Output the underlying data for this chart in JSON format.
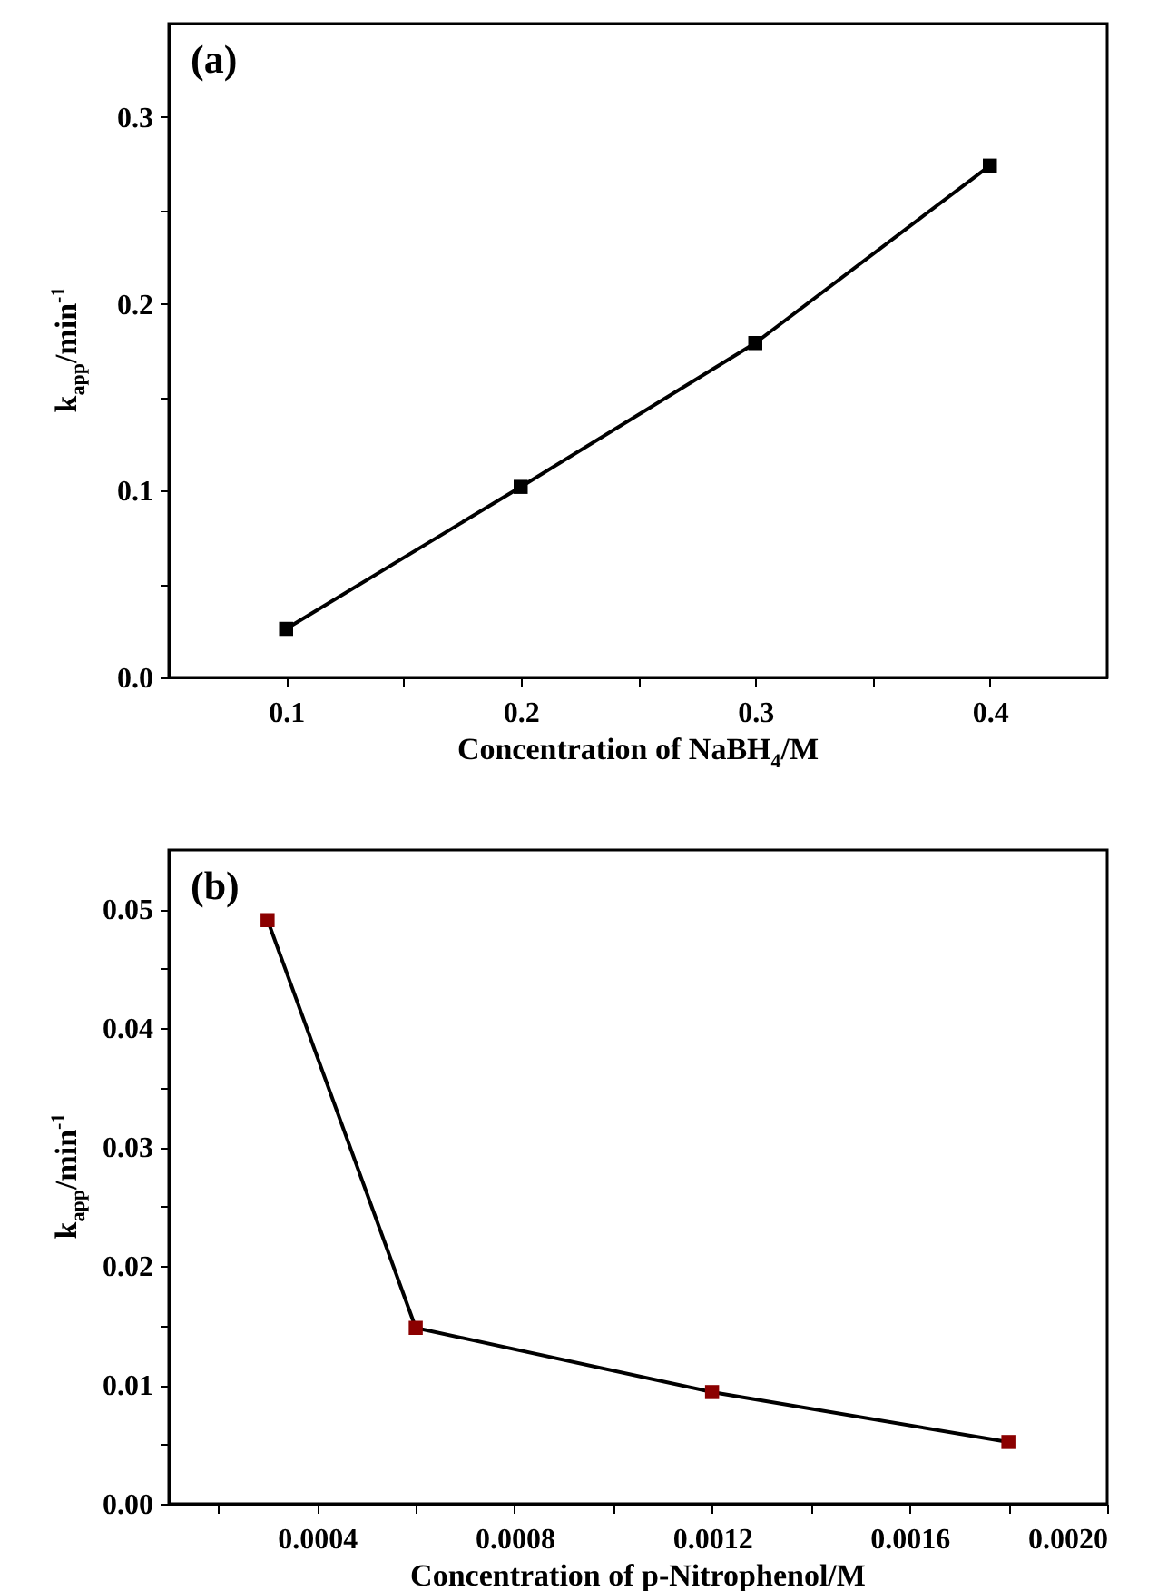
{
  "chart_data": [
    {
      "type": "line",
      "xlabel": "Concentration of NaBH$_{4}$/M",
      "ylabel": "k$_{app}$/min$^{-1}$",
      "annotations": [
        "(a)"
      ],
      "x": [
        0.1,
        0.2,
        0.3,
        0.4
      ],
      "series": [
        {
          "color": "#000000",
          "values": [
            0.026,
            0.102,
            0.179,
            0.274
          ]
        }
      ],
      "xlim": [
        0.05,
        0.45
      ],
      "xticks": [
        0.1,
        {
          "value": 0.15,
          "label": null
        },
        0.2,
        {
          "value": 0.25,
          "label": null
        },
        0.3,
        {
          "value": 0.35,
          "label": null
        },
        0.4
      ],
      "ylim": [
        0,
        0.35
      ],
      "yticks": [
        {
          "value": 0,
          "label": "0.0"
        },
        {
          "value": 0.05,
          "label": null
        },
        0.1,
        {
          "value": 0.15,
          "label": null
        },
        0.2,
        {
          "value": 0.25,
          "label": null
        },
        0.3
      ],
      "grid": false,
      "marker": "square",
      "line_style": "solid"
    },
    {
      "type": "line",
      "xlabel": "Concentration of p-Nitrophenol/M",
      "ylabel": "k$_{app}$/min$^{-1}$",
      "annotations": [
        "(b)"
      ],
      "x": [
        0.0003,
        0.0006,
        0.0012,
        0.0018
      ],
      "series": [
        {
          "color": "#8b0000",
          "values": [
            0.0491,
            0.0148,
            0.0094,
            0.0052
          ]
        }
      ],
      "xlim": [
        0.0001,
        0.002
      ],
      "xticks": [
        {
          "value": 0.0002,
          "label": null
        },
        0.0004,
        {
          "value": 0.0006,
          "label": null
        },
        0.0008,
        {
          "value": 0.001,
          "label": null
        },
        0.0012,
        {
          "value": 0.0014,
          "label": null
        },
        0.0016,
        {
          "value": 0.0018,
          "label": null
        },
        {
          "value": 0.002,
          "label": "0.0020"
        }
      ],
      "ylim": [
        0,
        0.055
      ],
      "yticks": [
        {
          "value": 0,
          "label": "0.00"
        },
        {
          "value": 0.005,
          "label": null
        },
        0.01,
        {
          "value": 0.015,
          "label": null
        },
        0.02,
        {
          "value": 0.025,
          "label": null
        },
        0.03,
        {
          "value": 0.035,
          "label": null
        },
        0.04,
        {
          "value": 0.045,
          "label": null
        },
        0.05
      ],
      "grid": false,
      "marker": "square",
      "line_style": "solid"
    }
  ]
}
